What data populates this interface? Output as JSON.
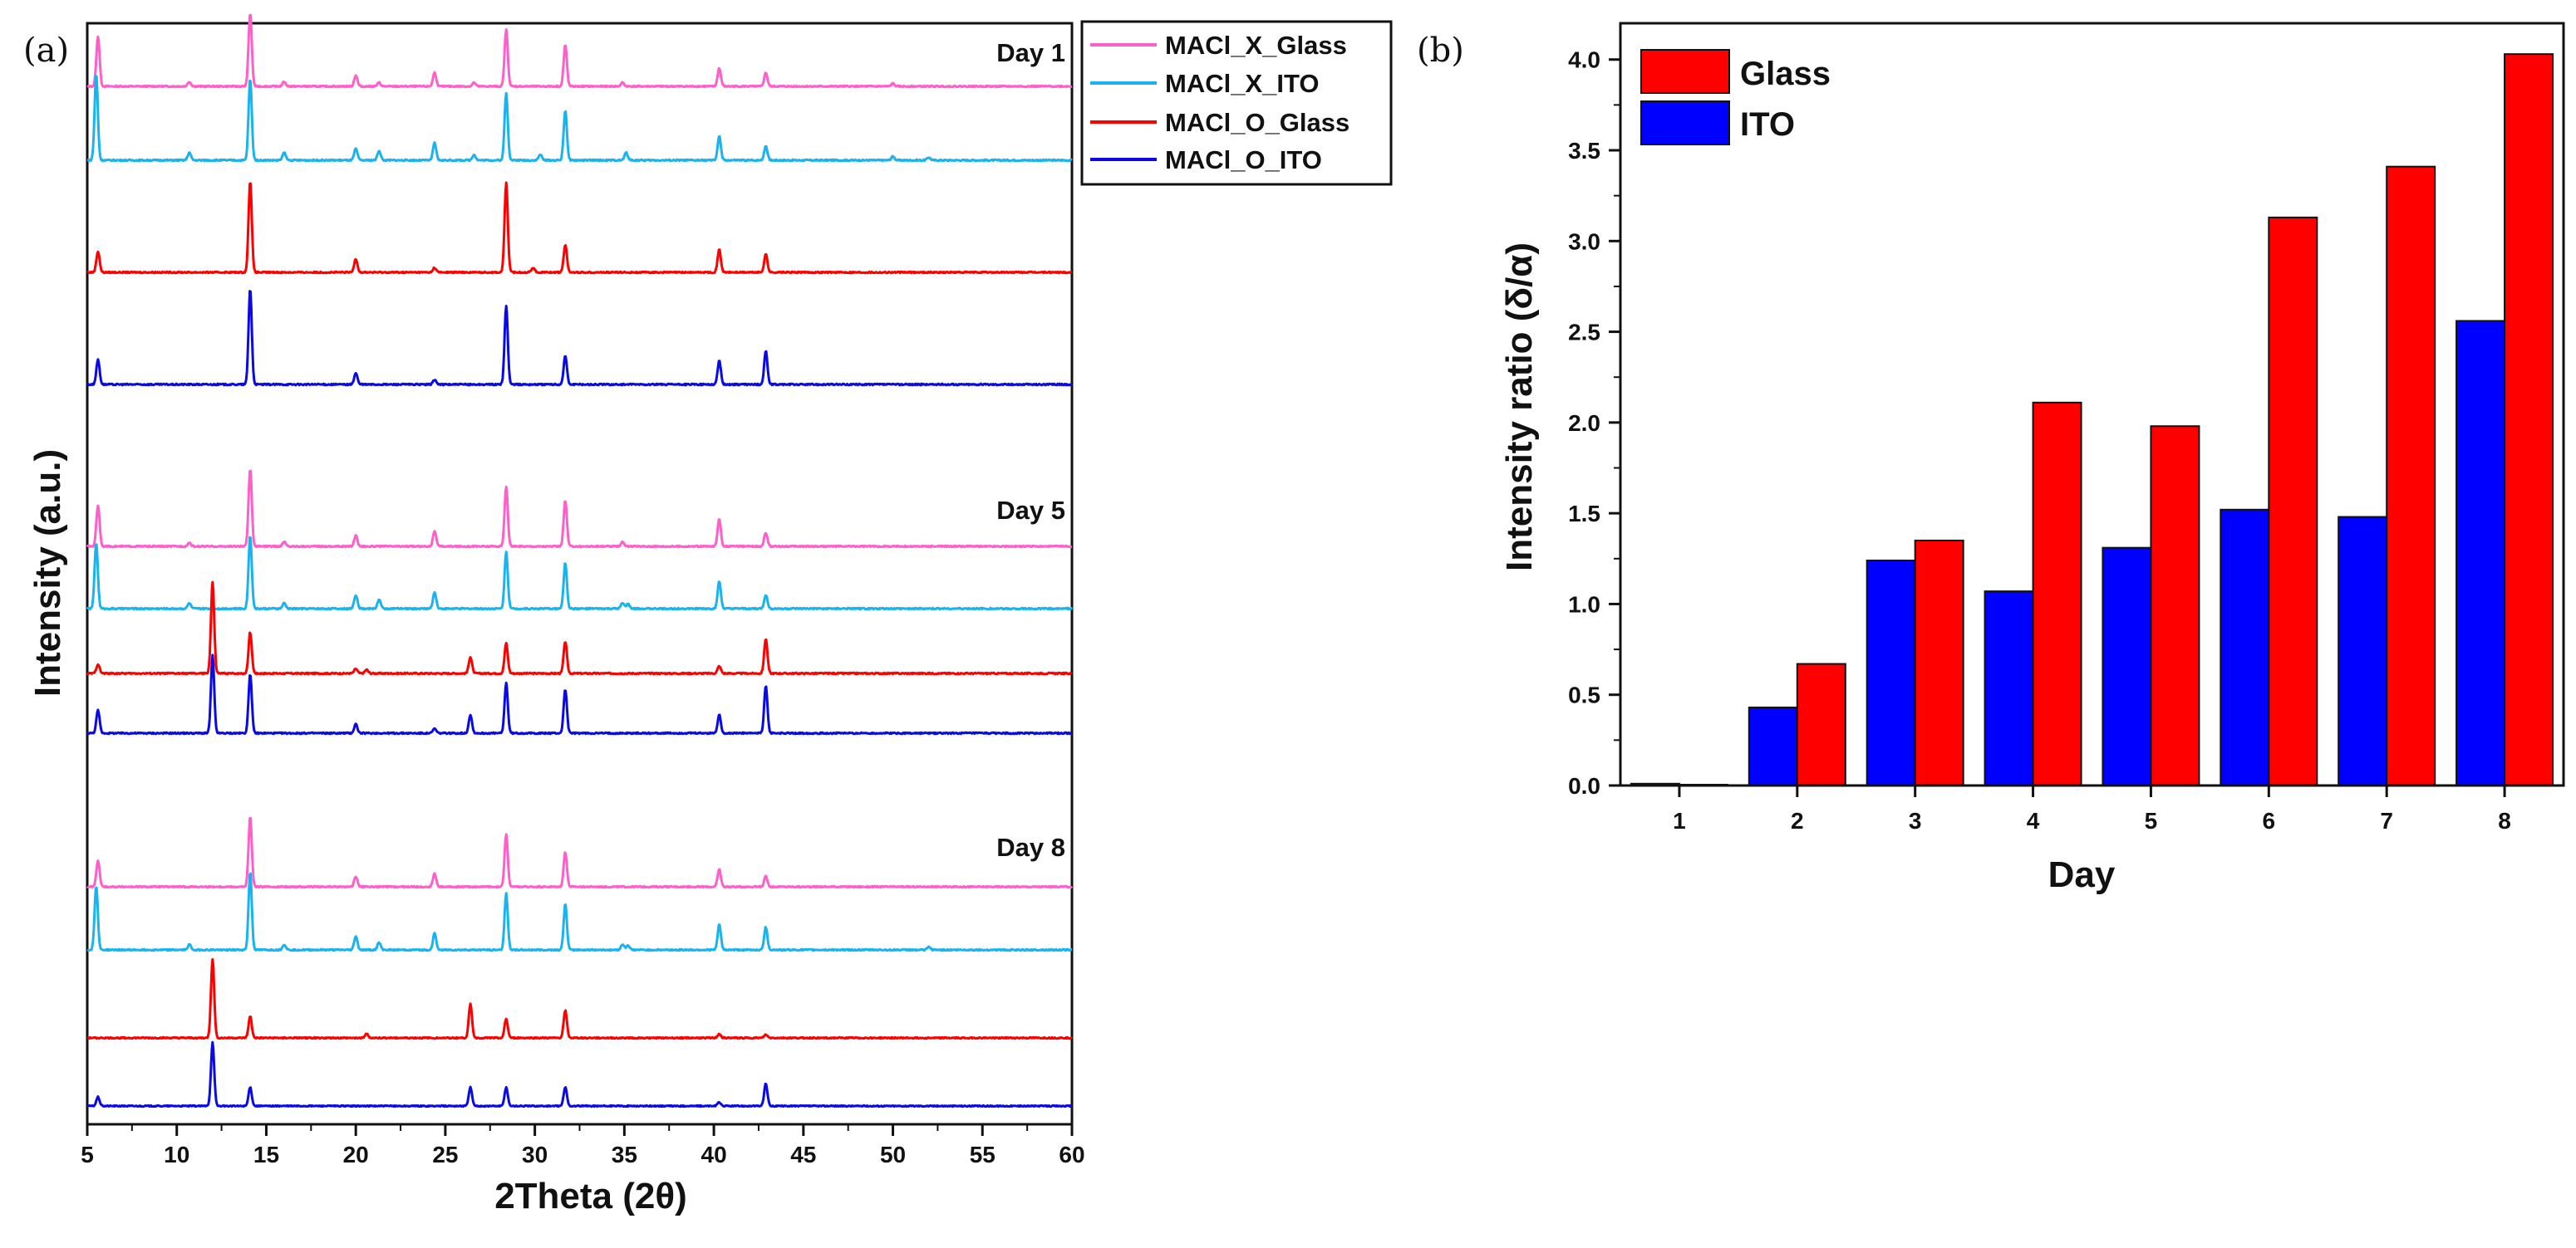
{
  "chart_data": [
    {
      "type": "line",
      "panel": "(a)",
      "title": "",
      "xlabel": "2Theta (2θ)",
      "ylabel": "Intensity (a.u.)",
      "xlim": [
        5,
        60
      ],
      "xticks": [
        5,
        10,
        15,
        20,
        25,
        30,
        35,
        40,
        45,
        50,
        55,
        60
      ],
      "legend": {
        "placement": "top-right-outside",
        "entries": [
          {
            "name": "MACl_X_Glass",
            "color": "#ff5fc9"
          },
          {
            "name": "MACl_X_ITO",
            "color": "#19b4f0"
          },
          {
            "name": "MACl_O_Glass",
            "color": "#ff0000"
          },
          {
            "name": "MACl_O_ITO",
            "color": "#0a0ae6"
          }
        ]
      },
      "groups": [
        {
          "label": "Day 1",
          "series": [
            {
              "name": "MACl_X_Glass",
              "color": "#ff5fc9",
              "peaks": [
                [
                  5.6,
                  0.55
                ],
                [
                  10.7,
                  0.05
                ],
                [
                  14.1,
                  0.8
                ],
                [
                  16.0,
                  0.05
                ],
                [
                  20.0,
                  0.12
                ],
                [
                  21.3,
                  0.04
                ],
                [
                  24.4,
                  0.15
                ],
                [
                  26.6,
                  0.04
                ],
                [
                  28.4,
                  0.62
                ],
                [
                  31.7,
                  0.45
                ],
                [
                  34.9,
                  0.04
                ],
                [
                  40.3,
                  0.2
                ],
                [
                  42.9,
                  0.15
                ],
                [
                  50.0,
                  0.03
                ]
              ]
            },
            {
              "name": "MACl_X_ITO",
              "color": "#19b4f0",
              "peaks": [
                [
                  5.5,
                  0.9
                ],
                [
                  10.7,
                  0.08
                ],
                [
                  14.1,
                  0.85
                ],
                [
                  16.0,
                  0.08
                ],
                [
                  20.0,
                  0.12
                ],
                [
                  21.3,
                  0.1
                ],
                [
                  24.4,
                  0.18
                ],
                [
                  26.6,
                  0.06
                ],
                [
                  28.4,
                  0.7
                ],
                [
                  30.3,
                  0.06
                ],
                [
                  31.7,
                  0.52
                ],
                [
                  35.1,
                  0.08
                ],
                [
                  40.3,
                  0.25
                ],
                [
                  42.9,
                  0.15
                ],
                [
                  50.0,
                  0.04
                ],
                [
                  52.0,
                  0.03
                ]
              ]
            },
            {
              "name": "MACl_O_Glass",
              "color": "#ff0000",
              "peaks": [
                [
                  5.6,
                  0.23
                ],
                [
                  14.1,
                  1.0
                ],
                [
                  20.0,
                  0.15
                ],
                [
                  24.4,
                  0.05
                ],
                [
                  28.4,
                  0.98
                ],
                [
                  29.9,
                  0.05
                ],
                [
                  31.7,
                  0.3
                ],
                [
                  40.3,
                  0.25
                ],
                [
                  42.9,
                  0.2
                ]
              ]
            },
            {
              "name": "MACl_O_ITO",
              "color": "#0a0ae6",
              "peaks": [
                [
                  5.6,
                  0.26
                ],
                [
                  14.1,
                  1.0
                ],
                [
                  20.0,
                  0.12
                ],
                [
                  24.4,
                  0.05
                ],
                [
                  28.4,
                  0.82
                ],
                [
                  31.7,
                  0.3
                ],
                [
                  40.3,
                  0.25
                ],
                [
                  42.9,
                  0.35
                ]
              ]
            }
          ]
        },
        {
          "label": "Day 5",
          "series": [
            {
              "name": "MACl_X_Glass",
              "color": "#ff5fc9",
              "peaks": [
                [
                  5.6,
                  0.45
                ],
                [
                  10.7,
                  0.04
                ],
                [
                  14.1,
                  0.85
                ],
                [
                  16.0,
                  0.05
                ],
                [
                  20.0,
                  0.12
                ],
                [
                  24.4,
                  0.17
                ],
                [
                  28.4,
                  0.65
                ],
                [
                  31.7,
                  0.5
                ],
                [
                  34.9,
                  0.05
                ],
                [
                  40.3,
                  0.3
                ],
                [
                  42.9,
                  0.15
                ]
              ]
            },
            {
              "name": "MACl_X_ITO",
              "color": "#19b4f0",
              "peaks": [
                [
                  5.5,
                  0.72
                ],
                [
                  10.7,
                  0.06
                ],
                [
                  14.1,
                  0.8
                ],
                [
                  16.0,
                  0.06
                ],
                [
                  20.0,
                  0.15
                ],
                [
                  21.3,
                  0.1
                ],
                [
                  24.4,
                  0.18
                ],
                [
                  28.4,
                  0.62
                ],
                [
                  31.7,
                  0.5
                ],
                [
                  34.9,
                  0.06
                ],
                [
                  35.2,
                  0.05
                ],
                [
                  40.3,
                  0.3
                ],
                [
                  42.9,
                  0.15
                ]
              ]
            },
            {
              "name": "MACl_O_Glass",
              "color": "#ff0000",
              "peaks": [
                [
                  5.6,
                  0.1
                ],
                [
                  12.0,
                  1.0
                ],
                [
                  14.1,
                  0.45
                ],
                [
                  20.0,
                  0.05
                ],
                [
                  20.6,
                  0.04
                ],
                [
                  26.4,
                  0.18
                ],
                [
                  28.4,
                  0.33
                ],
                [
                  31.7,
                  0.35
                ],
                [
                  40.3,
                  0.08
                ],
                [
                  42.9,
                  0.38
                ]
              ]
            },
            {
              "name": "MACl_O_ITO",
              "color": "#0a0ae6",
              "peaks": [
                [
                  5.6,
                  0.25
                ],
                [
                  12.0,
                  0.85
                ],
                [
                  14.1,
                  0.65
                ],
                [
                  20.0,
                  0.1
                ],
                [
                  24.4,
                  0.05
                ],
                [
                  26.4,
                  0.2
                ],
                [
                  28.4,
                  0.55
                ],
                [
                  31.7,
                  0.48
                ],
                [
                  40.3,
                  0.2
                ],
                [
                  42.9,
                  0.52
                ]
              ]
            }
          ]
        },
        {
          "label": "Day 8",
          "series": [
            {
              "name": "MACl_X_Glass",
              "color": "#ff5fc9",
              "peaks": [
                [
                  5.6,
                  0.3
                ],
                [
                  14.1,
                  0.8
                ],
                [
                  20.0,
                  0.12
                ],
                [
                  24.4,
                  0.15
                ],
                [
                  28.4,
                  0.6
                ],
                [
                  31.7,
                  0.4
                ],
                [
                  40.3,
                  0.2
                ],
                [
                  42.9,
                  0.12
                ]
              ]
            },
            {
              "name": "MACl_X_ITO",
              "color": "#19b4f0",
              "peaks": [
                [
                  5.5,
                  0.7
                ],
                [
                  10.7,
                  0.06
                ],
                [
                  14.1,
                  0.85
                ],
                [
                  16.0,
                  0.06
                ],
                [
                  20.0,
                  0.15
                ],
                [
                  21.3,
                  0.08
                ],
                [
                  24.4,
                  0.18
                ],
                [
                  28.4,
                  0.62
                ],
                [
                  31.7,
                  0.5
                ],
                [
                  34.9,
                  0.06
                ],
                [
                  35.2,
                  0.05
                ],
                [
                  40.3,
                  0.28
                ],
                [
                  42.9,
                  0.25
                ],
                [
                  52.0,
                  0.03
                ]
              ]
            },
            {
              "name": "MACl_O_Glass",
              "color": "#ff0000",
              "peaks": [
                [
                  12.0,
                  1.0
                ],
                [
                  14.1,
                  0.27
                ],
                [
                  20.6,
                  0.05
                ],
                [
                  26.4,
                  0.43
                ],
                [
                  28.4,
                  0.24
                ],
                [
                  31.7,
                  0.35
                ],
                [
                  40.3,
                  0.05
                ],
                [
                  42.9,
                  0.04
                ]
              ]
            },
            {
              "name": "MACl_O_ITO",
              "color": "#0a0ae6",
              "peaks": [
                [
                  5.6,
                  0.12
                ],
                [
                  12.0,
                  0.85
                ],
                [
                  14.1,
                  0.25
                ],
                [
                  26.4,
                  0.25
                ],
                [
                  28.4,
                  0.25
                ],
                [
                  31.7,
                  0.25
                ],
                [
                  40.3,
                  0.05
                ],
                [
                  42.9,
                  0.3
                ]
              ]
            }
          ]
        }
      ]
    },
    {
      "type": "bar",
      "panel": "(b)",
      "title": "",
      "xlabel": "Day",
      "ylabel": "Intensity ratio (δ/α)",
      "ylim": [
        0,
        4.2
      ],
      "yticks": [
        "0.0",
        "0.5",
        "1.0",
        "1.5",
        "2.0",
        "2.5",
        "3.0",
        "3.5",
        "4.0"
      ],
      "categories": [
        "1",
        "2",
        "3",
        "4",
        "5",
        "6",
        "7",
        "8"
      ],
      "legend": {
        "placement": "top-left"
      },
      "series": [
        {
          "name": "ITO",
          "color": "#0000ff",
          "values": [
            0.01,
            0.43,
            1.24,
            1.07,
            1.31,
            1.52,
            1.48,
            2.56
          ]
        },
        {
          "name": "Glass",
          "color": "#ff0000",
          "values": [
            0.0,
            0.67,
            1.35,
            2.11,
            1.98,
            3.13,
            3.41,
            4.03
          ]
        }
      ]
    }
  ]
}
